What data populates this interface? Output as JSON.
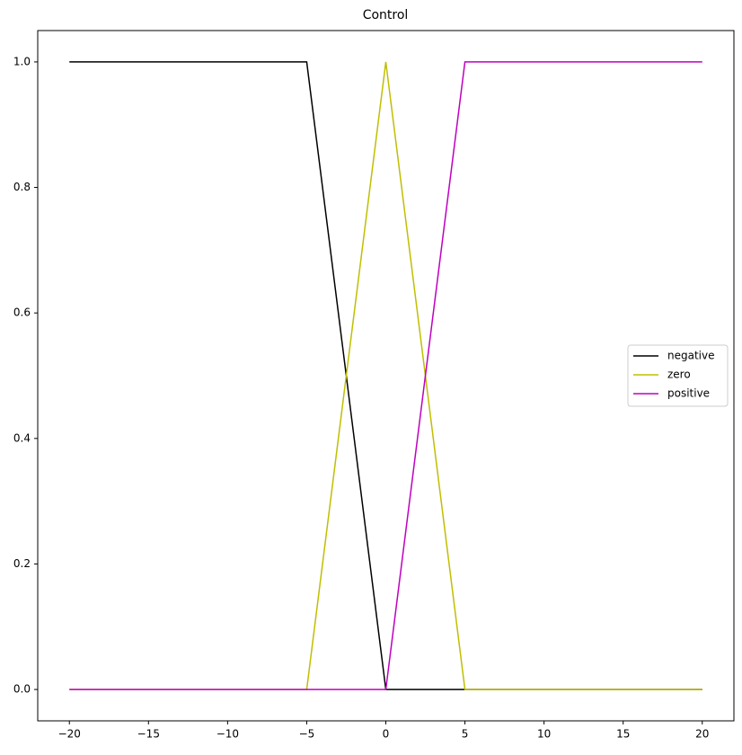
{
  "chart_data": {
    "type": "line",
    "title": "Control",
    "series": [
      {
        "name": "negative",
        "color": "#000000",
        "x": [
          -20,
          -5,
          0,
          20
        ],
        "values": [
          1,
          1,
          0,
          0
        ]
      },
      {
        "name": "zero",
        "color": "#bfbf00",
        "x": [
          -20,
          -5,
          0,
          5,
          20
        ],
        "values": [
          0,
          0,
          1,
          0,
          0
        ]
      },
      {
        "name": "positive",
        "color": "#bf00bf",
        "x": [
          -20,
          0,
          5,
          20
        ],
        "values": [
          0,
          0,
          1,
          1
        ]
      }
    ],
    "xlim": [
      -22,
      22
    ],
    "xticks": [
      {
        "value": -20,
        "label": "−20"
      },
      {
        "value": -15,
        "label": "−15"
      },
      {
        "value": -10,
        "label": "−10"
      },
      {
        "value": -5,
        "label": "−5"
      },
      0,
      5,
      10,
      15,
      20
    ],
    "ylim": [
      -0.05,
      1.05
    ],
    "yticks": [
      {
        "value": 0,
        "label": "0.0"
      },
      0.2,
      0.4,
      0.6,
      0.8,
      {
        "value": 1,
        "label": "1.0"
      }
    ],
    "grid": false,
    "legend": "center right"
  }
}
